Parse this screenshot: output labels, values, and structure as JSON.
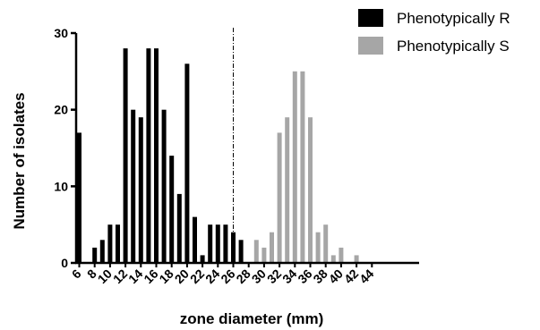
{
  "chart_data": {
    "type": "bar",
    "xlabel": "zone diameter (mm)",
    "ylabel": "Number of isolates",
    "ylim": [
      0,
      30
    ],
    "yticks": [
      0,
      10,
      20,
      30
    ],
    "xlim": [
      6,
      45
    ],
    "xticks": [
      6,
      8,
      10,
      12,
      14,
      16,
      18,
      20,
      22,
      24,
      26,
      28,
      30,
      32,
      34,
      36,
      38,
      40,
      42,
      44
    ],
    "reference_line": {
      "x": 26,
      "style": "dash-dot"
    },
    "legend_position": "top-right",
    "colors": {
      "R": "#000000",
      "S": "#a6a6a6"
    },
    "series": [
      {
        "name": "Phenotypically R",
        "color": "#000000",
        "points": [
          {
            "x": 6,
            "y": 17
          },
          {
            "x": 8,
            "y": 2
          },
          {
            "x": 9,
            "y": 3
          },
          {
            "x": 10,
            "y": 5
          },
          {
            "x": 11,
            "y": 5
          },
          {
            "x": 12,
            "y": 28
          },
          {
            "x": 13,
            "y": 20
          },
          {
            "x": 14,
            "y": 19
          },
          {
            "x": 15,
            "y": 28
          },
          {
            "x": 16,
            "y": 28
          },
          {
            "x": 17,
            "y": 20
          },
          {
            "x": 18,
            "y": 14
          },
          {
            "x": 19,
            "y": 9
          },
          {
            "x": 20,
            "y": 26
          },
          {
            "x": 21,
            "y": 6
          },
          {
            "x": 22,
            "y": 1
          },
          {
            "x": 23,
            "y": 5
          },
          {
            "x": 24,
            "y": 5
          },
          {
            "x": 25,
            "y": 5
          },
          {
            "x": 26,
            "y": 4
          },
          {
            "x": 27,
            "y": 3
          }
        ]
      },
      {
        "name": "Phenotypically S",
        "color": "#a6a6a6",
        "points": [
          {
            "x": 29,
            "y": 3
          },
          {
            "x": 30,
            "y": 2
          },
          {
            "x": 31,
            "y": 4
          },
          {
            "x": 32,
            "y": 17
          },
          {
            "x": 33,
            "y": 19
          },
          {
            "x": 34,
            "y": 25
          },
          {
            "x": 35,
            "y": 25
          },
          {
            "x": 36,
            "y": 19
          },
          {
            "x": 37,
            "y": 4
          },
          {
            "x": 38,
            "y": 5
          },
          {
            "x": 39,
            "y": 1
          },
          {
            "x": 40,
            "y": 2
          },
          {
            "x": 42,
            "y": 1
          }
        ]
      }
    ]
  }
}
